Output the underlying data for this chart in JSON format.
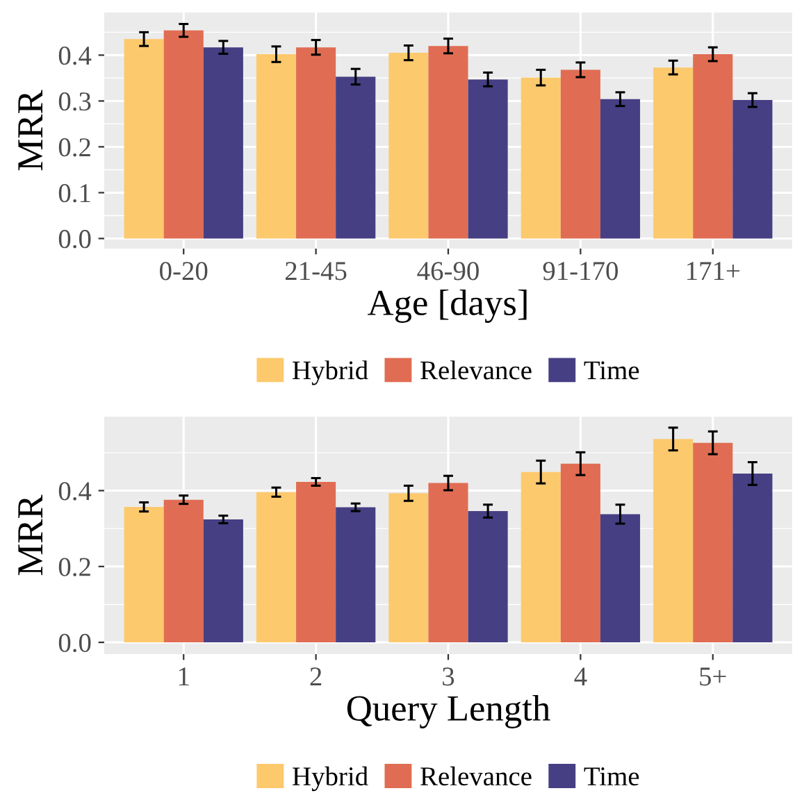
{
  "chart_data": [
    {
      "type": "bar",
      "categories": [
        "0-20",
        "21-45",
        "46-90",
        "91-170",
        "171+"
      ],
      "xlabel": "Age [days]",
      "ylabel": "MRR",
      "ylim": [
        -0.022,
        0.493
      ],
      "yticks": [
        {
          "value": 0,
          "label": "0.0"
        },
        0.1,
        0.2,
        0.3,
        0.4,
        {
          "value": 0.05,
          "label": null
        },
        {
          "value": 0.15,
          "label": null
        },
        {
          "value": 0.25,
          "label": null
        },
        {
          "value": 0.35,
          "label": null
        },
        {
          "value": 0.45,
          "label": null
        }
      ],
      "grid": true,
      "legend": "bottom",
      "series": [
        {
          "name": "Hybrid",
          "color": "#fdc96d",
          "values": [
            0.435,
            0.402,
            0.405,
            0.351,
            0.373
          ],
          "errors": [
            0.015,
            0.017,
            0.016,
            0.017,
            0.015
          ]
        },
        {
          "name": "Relevance",
          "color": "#e06d53",
          "values": [
            0.454,
            0.417,
            0.42,
            0.368,
            0.402
          ],
          "errors": [
            0.014,
            0.016,
            0.016,
            0.016,
            0.015
          ]
        },
        {
          "name": "Time",
          "color": "#463f84",
          "values": [
            0.417,
            0.353,
            0.347,
            0.304,
            0.302
          ],
          "errors": [
            0.014,
            0.017,
            0.015,
            0.015,
            0.015
          ]
        }
      ]
    },
    {
      "type": "bar",
      "categories": [
        "1",
        "2",
        "3",
        "4",
        "5+"
      ],
      "xlabel": "Query Length",
      "ylabel": "MRR",
      "ylim": [
        -0.031,
        0.595
      ],
      "yticks": [
        {
          "value": 0,
          "label": "0.0"
        },
        0.2,
        0.4,
        {
          "value": 0.1,
          "label": null
        },
        {
          "value": 0.3,
          "label": null
        },
        {
          "value": 0.5,
          "label": null
        }
      ],
      "grid": true,
      "legend": "bottom",
      "series": [
        {
          "name": "Hybrid",
          "color": "#fdc96d",
          "values": [
            0.357,
            0.396,
            0.393,
            0.449,
            0.536
          ],
          "errors": [
            0.012,
            0.012,
            0.02,
            0.03,
            0.03
          ]
        },
        {
          "name": "Relevance",
          "color": "#e06d53",
          "values": [
            0.376,
            0.423,
            0.42,
            0.471,
            0.526
          ],
          "errors": [
            0.011,
            0.01,
            0.019,
            0.03,
            0.03
          ]
        },
        {
          "name": "Time",
          "color": "#463f84",
          "values": [
            0.324,
            0.356,
            0.346,
            0.338,
            0.445
          ],
          "errors": [
            0.01,
            0.01,
            0.017,
            0.025,
            0.03
          ]
        }
      ]
    }
  ]
}
